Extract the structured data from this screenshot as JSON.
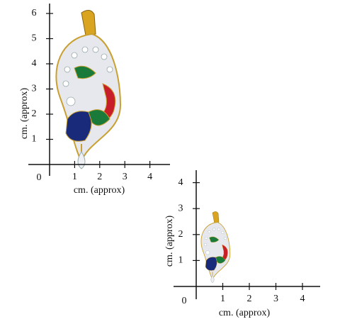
{
  "panels": [
    {
      "origin": "0",
      "xticks": [
        1,
        2,
        3,
        4
      ],
      "yticks": [
        1,
        2,
        3,
        4,
        5,
        6
      ],
      "xlabel": "cm. (approx)",
      "ylabel": "cm. (approx)"
    },
    {
      "origin": "0",
      "xticks": [
        1,
        2,
        3,
        4
      ],
      "yticks": [
        1,
        2,
        3,
        4
      ],
      "xlabel": "cm. (approx)",
      "ylabel": "cm. (approx)"
    }
  ]
}
